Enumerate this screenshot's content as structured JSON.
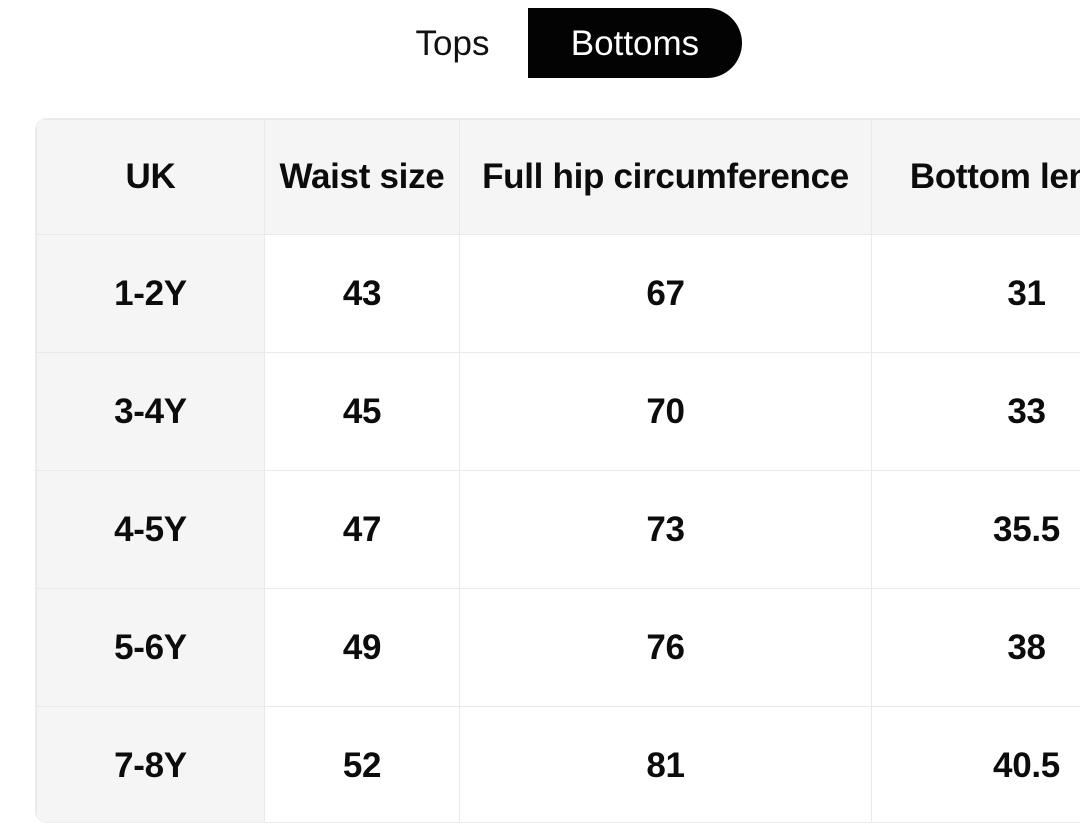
{
  "toggle": {
    "options": [
      {
        "label": "Tops",
        "selected": false
      },
      {
        "label": "Bottoms",
        "selected": true
      }
    ]
  },
  "size_table": {
    "headers": [
      "UK",
      "Waist size",
      "Full hip circumference",
      "Bottom length"
    ],
    "rows": [
      {
        "size": "1-2Y",
        "waist": "43",
        "hip": "67",
        "length": "31"
      },
      {
        "size": "3-4Y",
        "waist": "45",
        "hip": "70",
        "length": "33"
      },
      {
        "size": "4-5Y",
        "waist": "47",
        "hip": "73",
        "length": "35.5"
      },
      {
        "size": "5-6Y",
        "waist": "49",
        "hip": "76",
        "length": "38"
      },
      {
        "size": "7-8Y",
        "waist": "52",
        "hip": "81",
        "length": "40.5"
      }
    ]
  },
  "colors": {
    "selected_tab_bg": "#030303",
    "selected_tab_text": "#ffffff",
    "header_bg": "#f5f5f5",
    "cell_border": "#e9e9e9",
    "text": "#0c0c0c"
  }
}
